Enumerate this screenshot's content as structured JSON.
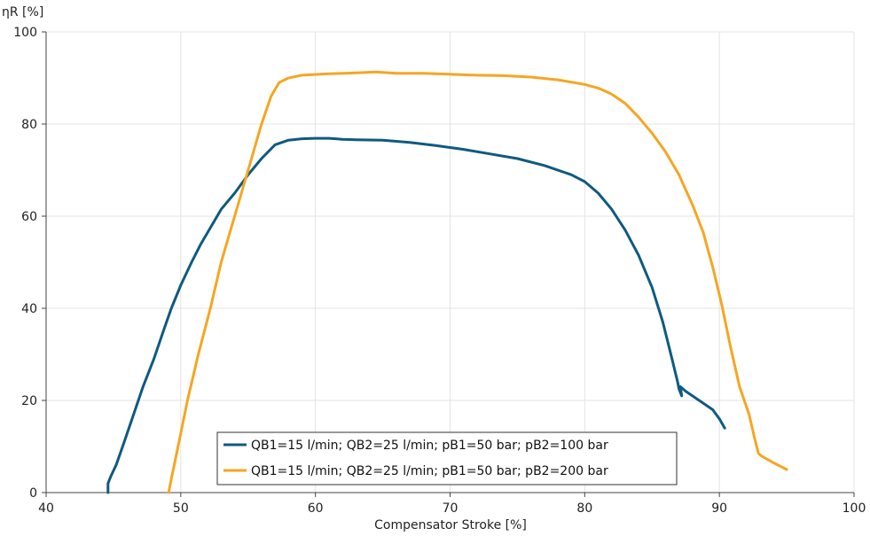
{
  "chart_data": {
    "type": "line",
    "title": "",
    "xlabel": "Compensator Stroke [%]",
    "ylabel": "ηR [%]",
    "xlim": [
      40,
      100
    ],
    "ylim": [
      0,
      100
    ],
    "x_ticks": [
      40,
      50,
      60,
      70,
      80,
      90,
      100
    ],
    "y_ticks": [
      0,
      20,
      40,
      60,
      80,
      100
    ],
    "grid": true,
    "legend_position": "bottom-center",
    "series": [
      {
        "name": "QB1=15 l/min; QB2=25 l/min; pB1=50 bar; pB2=100 bar",
        "color": "#0f5a80",
        "points": [
          [
            44.6,
            0
          ],
          [
            44.6,
            2
          ],
          [
            44.8,
            3.5
          ],
          [
            45.2,
            6
          ],
          [
            45.8,
            11
          ],
          [
            46.5,
            17
          ],
          [
            47.2,
            23
          ],
          [
            48.0,
            29
          ],
          [
            48.7,
            35
          ],
          [
            49.3,
            40
          ],
          [
            50.0,
            45
          ],
          [
            50.8,
            50
          ],
          [
            51.5,
            54
          ],
          [
            52.3,
            58
          ],
          [
            53.0,
            61.5
          ],
          [
            54.0,
            65
          ],
          [
            55.0,
            69
          ],
          [
            56.0,
            72.5
          ],
          [
            57.0,
            75.5
          ],
          [
            58.0,
            76.5
          ],
          [
            59.0,
            76.8
          ],
          [
            60.0,
            76.9
          ],
          [
            61.0,
            76.9
          ],
          [
            62.0,
            76.7
          ],
          [
            63.0,
            76.6
          ],
          [
            65.0,
            76.5
          ],
          [
            67.0,
            76.0
          ],
          [
            69.0,
            75.3
          ],
          [
            71.0,
            74.5
          ],
          [
            73.0,
            73.5
          ],
          [
            75.0,
            72.5
          ],
          [
            77.0,
            71.0
          ],
          [
            79.0,
            69.0
          ],
          [
            80.0,
            67.5
          ],
          [
            81.0,
            65.0
          ],
          [
            82.0,
            61.5
          ],
          [
            83.0,
            57.0
          ],
          [
            84.0,
            51.5
          ],
          [
            85.0,
            44.5
          ],
          [
            85.8,
            37.0
          ],
          [
            86.4,
            30.0
          ],
          [
            86.9,
            24.0
          ],
          [
            87.0,
            22.5
          ],
          [
            87.2,
            21.0
          ],
          [
            87.1,
            23.0
          ],
          [
            87.5,
            22.0
          ],
          [
            88.5,
            20.0
          ],
          [
            89.5,
            18.0
          ],
          [
            90.0,
            16.0
          ],
          [
            90.4,
            14.0
          ]
        ]
      },
      {
        "name": "QB1=15 l/min; QB2=25 l/min; pB1=50 bar; pB2=200 bar",
        "color": "#f5a623",
        "points": [
          [
            49.1,
            0
          ],
          [
            49.3,
            3
          ],
          [
            49.8,
            10
          ],
          [
            50.5,
            20
          ],
          [
            51.3,
            30
          ],
          [
            52.2,
            40
          ],
          [
            53.0,
            50
          ],
          [
            54.0,
            60
          ],
          [
            55.0,
            70
          ],
          [
            56.0,
            80
          ],
          [
            56.7,
            86
          ],
          [
            57.3,
            89
          ],
          [
            58.0,
            90.0
          ],
          [
            59.0,
            90.6
          ],
          [
            61.0,
            90.9
          ],
          [
            63.0,
            91.1
          ],
          [
            64.5,
            91.3
          ],
          [
            66.0,
            91.0
          ],
          [
            68.0,
            91.0
          ],
          [
            70.0,
            90.8
          ],
          [
            72.0,
            90.6
          ],
          [
            74.0,
            90.5
          ],
          [
            76.0,
            90.2
          ],
          [
            78.0,
            89.6
          ],
          [
            80.0,
            88.6
          ],
          [
            81.0,
            87.8
          ],
          [
            82.0,
            86.5
          ],
          [
            83.0,
            84.5
          ],
          [
            84.0,
            81.5
          ],
          [
            85.0,
            78.0
          ],
          [
            86.0,
            74.0
          ],
          [
            87.0,
            69.0
          ],
          [
            88.0,
            62.5
          ],
          [
            88.8,
            56.5
          ],
          [
            89.5,
            49.0
          ],
          [
            90.2,
            40.5
          ],
          [
            90.8,
            32.0
          ],
          [
            91.5,
            23.0
          ],
          [
            92.2,
            17.0
          ],
          [
            92.6,
            12.0
          ],
          [
            92.9,
            8.5
          ],
          [
            93.1,
            8.0
          ],
          [
            94.0,
            6.5
          ],
          [
            95.0,
            5.0
          ]
        ]
      }
    ]
  }
}
